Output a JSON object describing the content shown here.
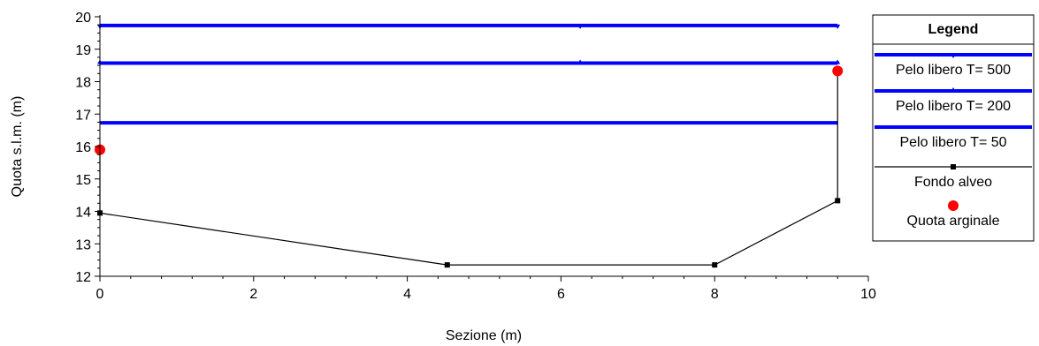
{
  "chart_data": {
    "type": "line",
    "title": "",
    "xlabel": "Sezione (m)",
    "ylabel": "Quota s.l.m.  (m)",
    "xlim": [
      0,
      10
    ],
    "ylim": [
      12,
      20
    ],
    "xticks": [
      0,
      2,
      4,
      6,
      8,
      10
    ],
    "yticks": [
      12,
      13,
      14,
      15,
      16,
      17,
      18,
      19,
      20
    ],
    "grid": false,
    "legend_position": "right",
    "legend_title": "Legend",
    "series": [
      {
        "name": "Pelo libero T= 500",
        "kind": "line",
        "color": "#0000ff",
        "marker": "triangle-down",
        "x": [
          0,
          6.25,
          9.6
        ],
        "y": [
          19.73,
          19.73,
          19.73
        ]
      },
      {
        "name": "Pelo libero T= 200",
        "kind": "line",
        "color": "#0000ff",
        "marker": "triangle-up",
        "x": [
          0,
          6.25,
          9.6
        ],
        "y": [
          18.57,
          18.57,
          18.57
        ]
      },
      {
        "name": "Pelo libero T= 50",
        "kind": "line",
        "color": "#0000ff",
        "marker": "none",
        "x": [
          0,
          9.6
        ],
        "y": [
          16.73,
          16.73
        ]
      },
      {
        "name": "Fondo alveo",
        "kind": "line",
        "color": "#000000",
        "marker": "square",
        "x": [
          0,
          0,
          4.52,
          8.0,
          9.6,
          9.6
        ],
        "y": [
          15.9,
          13.95,
          12.35,
          12.35,
          14.33,
          18.33
        ]
      },
      {
        "name": "Quota arginale",
        "kind": "scatter",
        "color": "#ff0000",
        "marker": "circle",
        "x": [
          0,
          9.6
        ],
        "y": [
          15.9,
          18.33
        ]
      }
    ]
  }
}
